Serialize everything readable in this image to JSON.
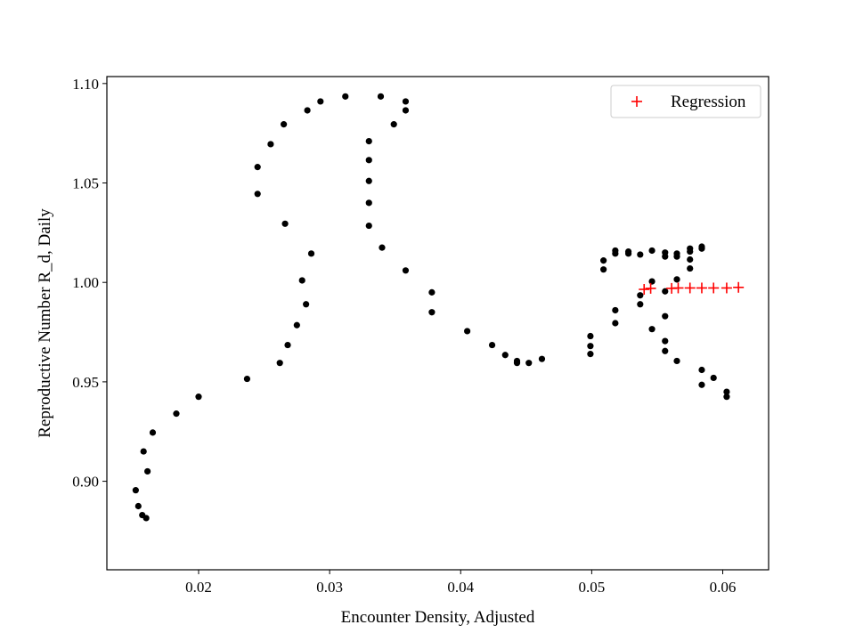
{
  "chart_data": {
    "type": "scatter",
    "title": "",
    "xlabel": "Encounter Density, Adjusted",
    "ylabel": "Reproductive Number R_d, Daily",
    "xlim": [
      0.013,
      0.0635
    ],
    "ylim": [
      0.8555,
      1.1035
    ],
    "xticks": [
      0.02,
      0.03,
      0.04,
      0.05,
      0.06
    ],
    "xtick_labels": [
      "0.02",
      "0.03",
      "0.04",
      "0.05",
      "0.06"
    ],
    "yticks": [
      0.9,
      0.95,
      1.0,
      1.05,
      1.1
    ],
    "ytick_labels": [
      "0.90",
      "0.95",
      "1.00",
      "1.05",
      "1.10"
    ],
    "grid": false,
    "legend_position": "top-right",
    "series": [
      {
        "marker": "dot",
        "color": "#000000",
        "points": [
          [
            0.0152,
            0.8955
          ],
          [
            0.0154,
            0.8875
          ],
          [
            0.0157,
            0.883
          ],
          [
            0.016,
            0.8815
          ],
          [
            0.0158,
            0.915
          ],
          [
            0.0161,
            0.905
          ],
          [
            0.0165,
            0.9245
          ],
          [
            0.0183,
            0.934
          ],
          [
            0.02,
            0.9425
          ],
          [
            0.0237,
            0.9515
          ],
          [
            0.0262,
            0.9595
          ],
          [
            0.0268,
            0.9685
          ],
          [
            0.0275,
            0.9785
          ],
          [
            0.0282,
            0.989
          ],
          [
            0.0279,
            1.001
          ],
          [
            0.0286,
            1.0145
          ],
          [
            0.0266,
            1.0295
          ],
          [
            0.0245,
            1.0445
          ],
          [
            0.0245,
            1.058
          ],
          [
            0.0255,
            1.0695
          ],
          [
            0.0265,
            1.0795
          ],
          [
            0.0283,
            1.0865
          ],
          [
            0.0293,
            1.091
          ],
          [
            0.0312,
            1.0935
          ],
          [
            0.0339,
            1.0935
          ],
          [
            0.0358,
            1.091
          ],
          [
            0.0358,
            1.0865
          ],
          [
            0.0349,
            1.0795
          ],
          [
            0.033,
            1.071
          ],
          [
            0.033,
            1.0615
          ],
          [
            0.033,
            1.051
          ],
          [
            0.033,
            1.04
          ],
          [
            0.033,
            1.0285
          ],
          [
            0.034,
            1.0175
          ],
          [
            0.0358,
            1.006
          ],
          [
            0.0378,
            0.995
          ],
          [
            0.0378,
            0.985
          ],
          [
            0.0405,
            0.9755
          ],
          [
            0.0424,
            0.9685
          ],
          [
            0.0434,
            0.9635
          ],
          [
            0.0443,
            0.9605
          ],
          [
            0.0443,
            0.9595
          ],
          [
            0.0452,
            0.9595
          ],
          [
            0.0462,
            0.9615
          ],
          [
            0.0499,
            0.964
          ],
          [
            0.0499,
            0.968
          ],
          [
            0.0499,
            0.973
          ],
          [
            0.0518,
            0.9795
          ],
          [
            0.0518,
            0.986
          ],
          [
            0.0537,
            0.989
          ],
          [
            0.0537,
            0.9935
          ],
          [
            0.0546,
            1.0005
          ],
          [
            0.0556,
            0.9955
          ],
          [
            0.0565,
            1.0015
          ],
          [
            0.0509,
            1.0065
          ],
          [
            0.0509,
            1.011
          ],
          [
            0.0518,
            1.0145
          ],
          [
            0.0518,
            1.016
          ],
          [
            0.0528,
            1.0145
          ],
          [
            0.0528,
            1.0155
          ],
          [
            0.0537,
            1.014
          ],
          [
            0.0546,
            1.016
          ],
          [
            0.0556,
            1.013
          ],
          [
            0.0556,
            1.015
          ],
          [
            0.0565,
            1.013
          ],
          [
            0.0565,
            1.0145
          ],
          [
            0.0575,
            1.007
          ],
          [
            0.0575,
            1.0115
          ],
          [
            0.0575,
            1.0155
          ],
          [
            0.0575,
            1.017
          ],
          [
            0.0584,
            1.017
          ],
          [
            0.0584,
            1.018
          ],
          [
            0.0546,
            0.9765
          ],
          [
            0.0556,
            0.983
          ],
          [
            0.0556,
            0.9705
          ],
          [
            0.0556,
            0.9655
          ],
          [
            0.0565,
            0.9605
          ],
          [
            0.0584,
            0.956
          ],
          [
            0.0593,
            0.952
          ],
          [
            0.0584,
            0.9485
          ],
          [
            0.0603,
            0.945
          ],
          [
            0.0603,
            0.9425
          ]
        ]
      },
      {
        "name": "Regression",
        "marker": "plus",
        "color": "#ff0000",
        "points": [
          [
            0.054,
            0.9965
          ],
          [
            0.0545,
            0.997
          ],
          [
            0.0561,
            0.997
          ],
          [
            0.0566,
            0.9972
          ],
          [
            0.0575,
            0.9972
          ],
          [
            0.0584,
            0.9972
          ],
          [
            0.0593,
            0.9972
          ],
          [
            0.0603,
            0.9972
          ],
          [
            0.0612,
            0.9975
          ]
        ]
      }
    ]
  }
}
